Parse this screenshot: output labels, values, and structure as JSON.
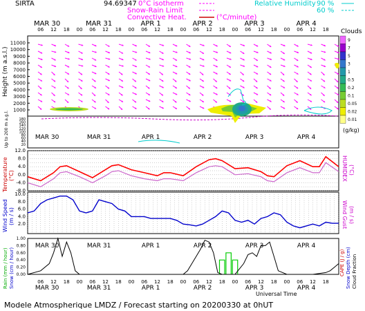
{
  "header": {
    "site": "SIRTA",
    "coords": "94.69347",
    "legend_isotherm": "0°C isotherm",
    "legend_snow": "Snow-Rain Limit",
    "legend_convective": "Convective Heat.",
    "legend_convective_unit": "(°C/minute)",
    "legend_rh": "Relative Humidity",
    "rh_90": "90 %",
    "rh_60": "60 %"
  },
  "colors": {
    "wind_arrow": "#ff00ff",
    "temperature": "#ff0000",
    "humidex": "#cc66cc",
    "wind": "#0000cc",
    "isotherm": "#cc00cc",
    "rain": "#000000",
    "cape": "#00cc00",
    "label_left": "#cc0000",
    "label_right": "#cc00cc"
  },
  "axes": {
    "hour_ticks": [
      "06",
      "12",
      "18",
      "00",
      "06",
      "12",
      "18",
      "00",
      "06",
      "12",
      "18",
      "00",
      "06",
      "12",
      "18",
      "00",
      "06",
      "12",
      "18",
      "00",
      "06",
      "12",
      "18"
    ],
    "days": [
      "MAR 30",
      "MAR 31",
      "APR  1",
      "APR  2",
      "APR  3",
      "APR  4"
    ],
    "height_ticks": [
      "11000",
      "10000",
      "9000",
      "8000",
      "7000",
      "6000",
      "5000",
      "4000",
      "3000",
      "2000",
      "1000"
    ],
    "low_ticks": [
      "180",
      "160",
      "140",
      "120",
      "100",
      "80",
      "60",
      "40",
      "20"
    ],
    "temp_ticks": [
      "12.0",
      "8.0",
      "4.0",
      "0.0",
      "-4.0",
      "-8.0"
    ],
    "wind_ticks": [
      "10.0",
      "8.0",
      "6.0",
      "4.0",
      "2.0"
    ],
    "rain_ticks": [
      "1.00",
      "0.80",
      "0.60",
      "0.40",
      "0.20",
      "0.00"
    ],
    "universal_time": "Universal Time"
  },
  "labels": {
    "height": "Height (m a.s.l.)",
    "up_to": "Up to 200 m a.g.l.",
    "temperature": "Temperature",
    "temperature_unit": "(°C)",
    "humidex": "HUMIDEX",
    "humidex_unit": "(°C)",
    "wind_speed": "Wind Speed",
    "wind_speed_unit": "(m / s)",
    "wind_gust": "Wind Gust",
    "wind_gust_unit": "(m / s)",
    "rain": "Rain (mm / hour)",
    "snow": "Snow (cm / hour)",
    "cape": "CAPE (J / g)",
    "snow_depth": "Snow Depth (cm)",
    "cloud_fraction": "Cloud Fraction"
  },
  "colorbar": {
    "title": "Clouds",
    "unit": "(g/kg)",
    "levels": [
      "9",
      "7",
      "5",
      "3",
      "1",
      "0.5",
      "0.2",
      "0.1",
      "0.05",
      "0.02",
      "0.01"
    ],
    "colors": [
      "#ee66ff",
      "#9900cc",
      "#3333cc",
      "#3377cc",
      "#2299aa",
      "#22aa88",
      "#33bb55",
      "#77cc33",
      "#bbdd22",
      "#eeee00",
      "#ffff88"
    ]
  },
  "footer": {
    "text": "Modele Atmospherique LMDZ / Forecast starting on 20200330 at 0hUT"
  },
  "chart_data": [
    {
      "type": "line",
      "panel": "temperature",
      "x_unit": "hours since 2020-03-30 00UT",
      "ylim": [
        -8,
        12
      ],
      "series": [
        {
          "name": "Temperature",
          "x": [
            0,
            6,
            12,
            15,
            18,
            24,
            30,
            36,
            39,
            42,
            48,
            54,
            60,
            63,
            66,
            72,
            78,
            84,
            87,
            90,
            96,
            102,
            108,
            111,
            114,
            120,
            126,
            132,
            135,
            138,
            144
          ],
          "values": [
            -1,
            -3,
            1,
            4,
            4.5,
            1.5,
            -1.5,
            2.5,
            4.5,
            5,
            2.5,
            1,
            -0.5,
            1,
            1,
            -0.5,
            4,
            7.5,
            8,
            7,
            3,
            3.5,
            1.5,
            -0.5,
            -1,
            4.5,
            7,
            4,
            4,
            9,
            4
          ]
        },
        {
          "name": "HUMIDEX",
          "x": [
            0,
            6,
            12,
            15,
            18,
            24,
            30,
            36,
            39,
            42,
            48,
            54,
            60,
            63,
            66,
            72,
            78,
            84,
            87,
            90,
            96,
            102,
            108,
            111,
            114,
            120,
            126,
            132,
            135,
            138,
            144
          ],
          "values": [
            -4,
            -6,
            -2,
            1,
            1.5,
            -1,
            -4,
            -0.5,
            1.5,
            2,
            -0.5,
            -2,
            -3,
            -2,
            -2,
            -3,
            1,
            4,
            4.5,
            4,
            0,
            0.5,
            -1,
            -3,
            -3.5,
            1,
            3.5,
            1,
            1,
            6,
            1.5
          ]
        }
      ]
    },
    {
      "type": "line",
      "panel": "wind_speed",
      "x_unit": "hours since 2020-03-30 00UT",
      "ylim": [
        0,
        10
      ],
      "series": [
        {
          "name": "Wind Speed",
          "x": [
            0,
            3,
            6,
            9,
            12,
            15,
            18,
            21,
            24,
            27,
            30,
            33,
            36,
            39,
            42,
            45,
            48,
            51,
            54,
            57,
            60,
            63,
            66,
            69,
            72,
            75,
            78,
            81,
            84,
            87,
            90,
            93,
            96,
            99,
            102,
            105,
            108,
            111,
            114,
            117,
            120,
            123,
            126,
            129,
            132,
            135,
            138,
            141,
            144
          ],
          "values": [
            5,
            5.5,
            7.5,
            8.5,
            9,
            9.5,
            9.5,
            8.5,
            5.5,
            5,
            5.5,
            8.5,
            8,
            7.5,
            6,
            5.5,
            4,
            4,
            4,
            3.5,
            3.5,
            3.5,
            3.5,
            3,
            2,
            1.8,
            1.5,
            2,
            3,
            4,
            5.5,
            5,
            3,
            2.5,
            3,
            2,
            3.5,
            4,
            5,
            4.5,
            2.5,
            1.5,
            1,
            1.5,
            2,
            1.5,
            2.5,
            2.2,
            2.2
          ]
        }
      ]
    },
    {
      "type": "line",
      "panel": "rain",
      "x_unit": "hours since 2020-03-30 00UT",
      "ylim": [
        0,
        1
      ],
      "series": [
        {
          "name": "Rain",
          "x": [
            0,
            6,
            10,
            12,
            14,
            16,
            18,
            20,
            22,
            24,
            48,
            60,
            72,
            74,
            78,
            80,
            82,
            84,
            86,
            88,
            90,
            92,
            96,
            100,
            102,
            104,
            106,
            108,
            110,
            112,
            114,
            116,
            120,
            132,
            138,
            140,
            142,
            144
          ],
          "values": [
            0,
            0.1,
            0.3,
            0.6,
            1.0,
            0.5,
            0.9,
            0.6,
            0.1,
            0,
            0,
            0,
            0,
            0.1,
            0.5,
            0.7,
            0.95,
            0.9,
            0.6,
            0.05,
            0,
            0,
            0,
            0.3,
            0.55,
            0.6,
            0.5,
            0.8,
            0.8,
            0.9,
            0.5,
            0.1,
            0,
            0,
            0.05,
            0.1,
            0.2,
            0.3
          ]
        },
        {
          "name": "CAPE",
          "x": [
            90,
            93,
            96
          ],
          "values": [
            0.4,
            0.6,
            0.4
          ]
        }
      ]
    }
  ]
}
